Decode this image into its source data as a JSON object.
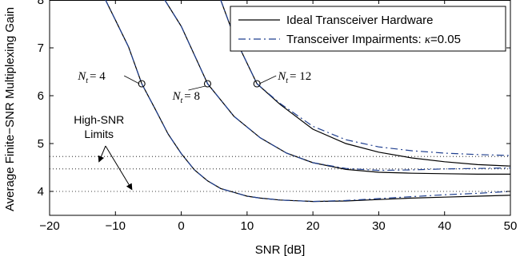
{
  "chart_data": {
    "type": "line",
    "xlabel": "SNR [dB]",
    "ylabel": "Average Finite−SNR Multiplexing Gain",
    "xlim": [
      -20,
      50
    ],
    "ylim": [
      3.5,
      8
    ],
    "xticks": [
      -20,
      -10,
      0,
      10,
      20,
      30,
      40,
      50
    ],
    "yticks": [
      4,
      5,
      6,
      7,
      8
    ],
    "xtick_labels": [
      "−20",
      "−10",
      "0",
      "10",
      "20",
      "30",
      "40",
      "50"
    ],
    "ytick_labels": [
      "4",
      "5",
      "6",
      "7",
      "8"
    ],
    "grid": false,
    "legend_position": "top-right",
    "legend": [
      {
        "label": "Ideal Transceiver Hardware",
        "style": "solid",
        "color": "#000000"
      },
      {
        "label_text": "Transceiver Impairments: ",
        "label_math": "κ",
        "label_value": "=0.05",
        "style": "dash-dot",
        "color": "#1f3f8f"
      }
    ],
    "series": [
      {
        "id": "ideal_nt4",
        "style": "solid",
        "color": "#000000",
        "x": [
          -11.5,
          -10,
          -8,
          -6,
          -4,
          -2,
          0,
          2,
          4,
          6,
          8,
          10,
          12,
          15,
          20,
          25,
          30,
          35,
          40,
          45,
          50
        ],
        "y": [
          8.0,
          7.58,
          7.02,
          6.25,
          5.73,
          5.2,
          4.79,
          4.45,
          4.22,
          4.06,
          3.98,
          3.9,
          3.86,
          3.82,
          3.79,
          3.8,
          3.83,
          3.86,
          3.88,
          3.9,
          3.92
        ]
      },
      {
        "id": "impair_nt4",
        "style": "dash-dot",
        "color": "#1f3f8f",
        "x": [
          -11.5,
          -10,
          -8,
          -6,
          -4,
          -2,
          0,
          2,
          4,
          6,
          8,
          10,
          12,
          15,
          20,
          25,
          30,
          35,
          40,
          45,
          50
        ],
        "y": [
          8.0,
          7.58,
          7.02,
          6.25,
          5.73,
          5.2,
          4.79,
          4.45,
          4.22,
          4.06,
          3.98,
          3.9,
          3.86,
          3.82,
          3.79,
          3.81,
          3.85,
          3.89,
          3.93,
          3.96,
          4.0
        ]
      },
      {
        "id": "ideal_nt8",
        "style": "solid",
        "color": "#000000",
        "x": [
          -2.5,
          0,
          4,
          8,
          12,
          16,
          20,
          25,
          30,
          35,
          40,
          45,
          50
        ],
        "y": [
          8.0,
          7.45,
          6.25,
          5.57,
          5.12,
          4.8,
          4.6,
          4.46,
          4.4,
          4.38,
          4.37,
          4.36,
          4.36
        ]
      },
      {
        "id": "impair_nt8",
        "style": "dash-dot",
        "color": "#1f3f8f",
        "x": [
          -2.5,
          0,
          4,
          8,
          12,
          16,
          20,
          25,
          30,
          35,
          40,
          45,
          50
        ],
        "y": [
          8.0,
          7.45,
          6.25,
          5.57,
          5.12,
          4.8,
          4.6,
          4.48,
          4.44,
          4.45,
          4.47,
          4.48,
          4.49
        ]
      },
      {
        "id": "ideal_nt12",
        "style": "solid",
        "color": "#000000",
        "x": [
          6.0,
          8,
          11.5,
          15,
          20,
          25,
          30,
          35,
          40,
          45,
          50
        ],
        "y": [
          8.0,
          7.25,
          6.25,
          5.82,
          5.3,
          5.0,
          4.82,
          4.7,
          4.62,
          4.56,
          4.53
        ]
      },
      {
        "id": "impair_nt12",
        "style": "dash-dot",
        "color": "#1f3f8f",
        "x": [
          6.0,
          8,
          11.5,
          15,
          20,
          25,
          30,
          35,
          40,
          45,
          50
        ],
        "y": [
          8.0,
          7.25,
          6.25,
          5.84,
          5.36,
          5.08,
          4.93,
          4.85,
          4.8,
          4.77,
          4.75
        ]
      }
    ],
    "limit_lines": {
      "style": "dotted",
      "y": [
        4.0,
        4.47,
        4.73
      ]
    },
    "markers": [
      {
        "series": "Nt=4",
        "x": -6,
        "y": 6.25,
        "label_sym": "N",
        "label_sub": "t",
        "label_val": "= 4"
      },
      {
        "series": "Nt=8",
        "x": 4,
        "y": 6.25,
        "label_sym": "N",
        "label_sub": "t",
        "label_val": "= 8"
      },
      {
        "series": "Nt=12",
        "x": 11.5,
        "y": 6.25,
        "label_sym": "N",
        "label_sub": "t",
        "label_val": "= 12"
      }
    ],
    "annotation": {
      "lines": [
        "High-SNR",
        "Limits"
      ],
      "arrow_origin": [
        -11.5,
        4.95
      ],
      "arrow_targets": [
        [
          -12.5,
          4.62
        ],
        [
          -7.5,
          4.04
        ]
      ]
    }
  }
}
